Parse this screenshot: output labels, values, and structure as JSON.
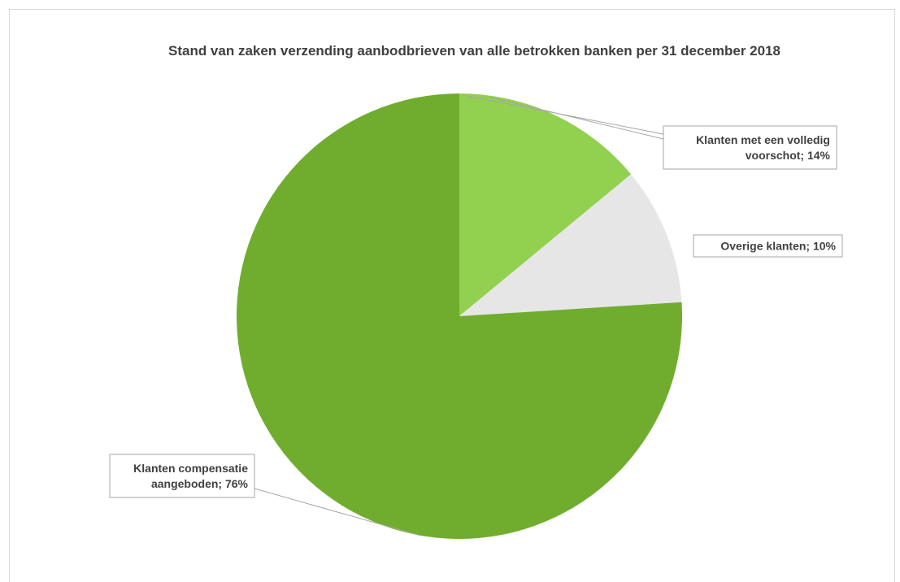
{
  "chart_data": {
    "type": "pie",
    "title": "Stand van zaken verzending aanbodbrieven van alle betrokken banken per 31 december 2018",
    "slices": [
      {
        "label": "Klanten met een volledig voorschot",
        "value": 14,
        "display": [
          "Klanten met een volledig",
          "voorschot; 14%"
        ],
        "color": "#92d050"
      },
      {
        "label": "Overige klanten",
        "value": 10,
        "display": [
          "Overige klanten; 10%"
        ],
        "color": "#e7e6e6"
      },
      {
        "label": "Klanten compensatie aangeboden",
        "value": 76,
        "display": [
          "Klanten compensatie",
          "aangeboden; 76%"
        ],
        "color": "#70ad2f"
      }
    ],
    "legend": "none",
    "start_angle": "12 o'clock, clockwise"
  }
}
